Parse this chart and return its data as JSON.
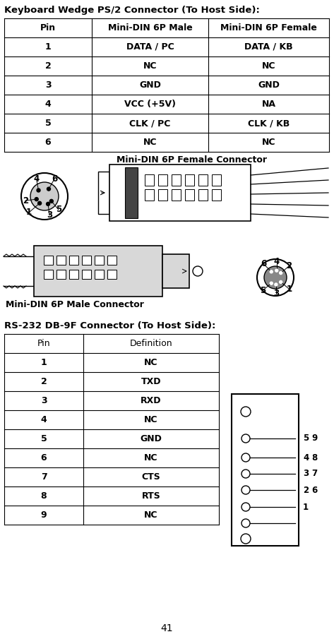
{
  "title1": "Keyboard Wedge PS/2 Connector (To Host Side):",
  "table1_headers": [
    "Pin",
    "Mini-DIN 6P Male",
    "Mini-DIN 6P Female"
  ],
  "table1_rows": [
    [
      "1",
      "DATA / PC",
      "DATA / KB"
    ],
    [
      "2",
      "NC",
      "NC"
    ],
    [
      "3",
      "GND",
      "GND"
    ],
    [
      "4",
      "VCC (+5V)",
      "NA"
    ],
    [
      "5",
      "CLK / PC",
      "CLK / KB"
    ],
    [
      "6",
      "NC",
      "NC"
    ]
  ],
  "female_label": "Mini-DIN 6P Female Connector",
  "male_label": "Mini-DIN 6P Male Connector",
  "title2": "RS-232 DB-9F Connector (To Host Side):",
  "table2_headers": [
    "Pin",
    "Definition"
  ],
  "table2_rows": [
    [
      "1",
      "NC"
    ],
    [
      "2",
      "TXD"
    ],
    [
      "3",
      "RXD"
    ],
    [
      "4",
      "NC"
    ],
    [
      "5",
      "GND"
    ],
    [
      "6",
      "NC"
    ],
    [
      "7",
      "CTS"
    ],
    [
      "8",
      "RTS"
    ],
    [
      "9",
      "NC"
    ]
  ],
  "page_number": "41",
  "bg_color": "#ffffff",
  "text_color": "#000000"
}
